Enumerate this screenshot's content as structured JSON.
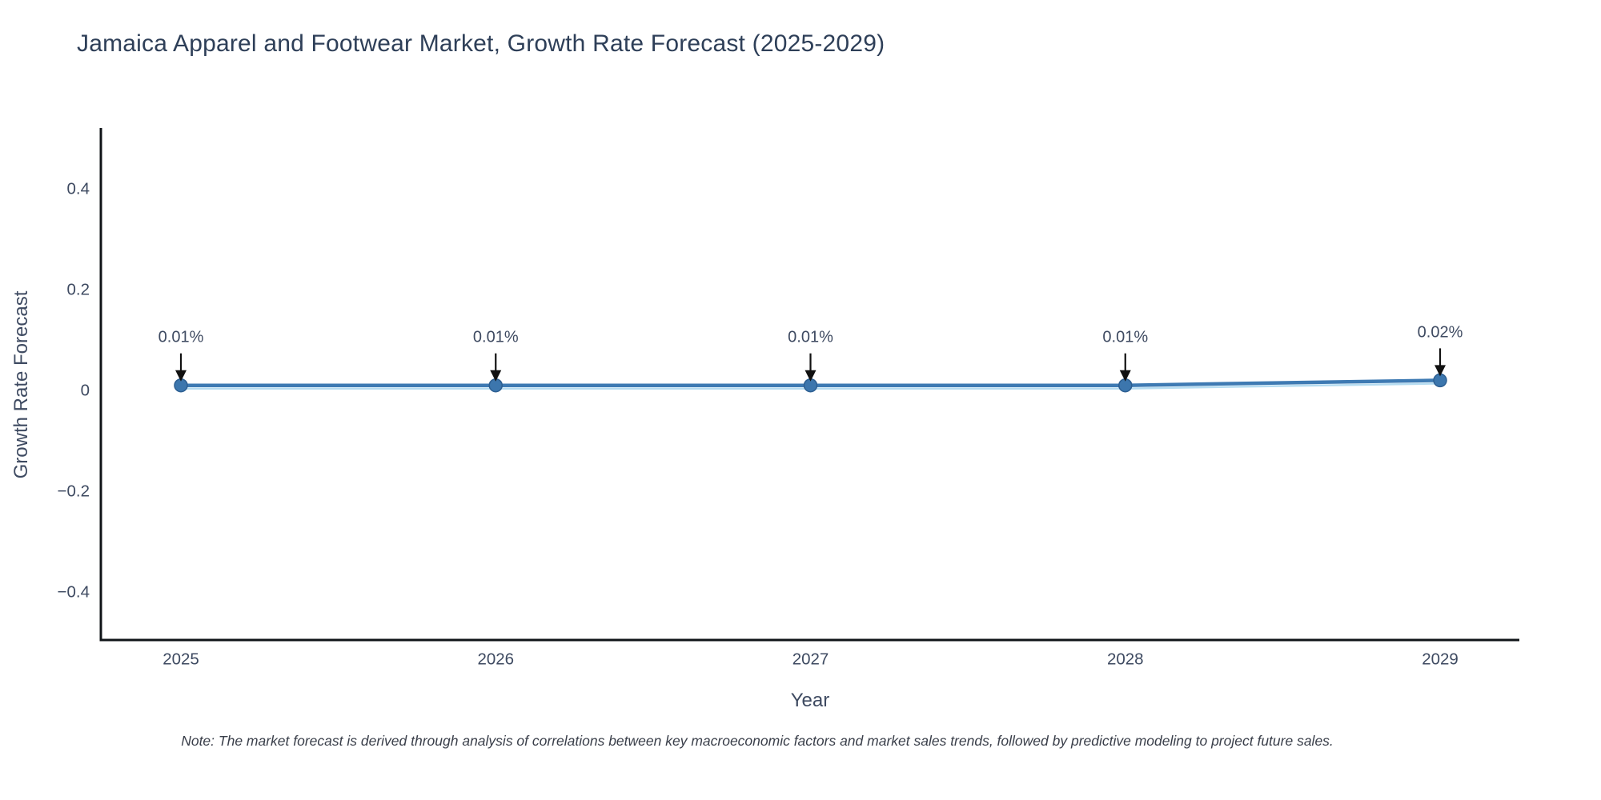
{
  "note": "Note: The market forecast is derived through analysis of correlations between key macroeconomic factors and market sales trends, followed by predictive modeling to project future sales.",
  "colors": {
    "title_text": "#2e3f58",
    "axis_text": "#3e4a61",
    "spine": "#101418",
    "line": "#3e7ab3",
    "line_underlay": "#b5dcf1",
    "marker_fill": "#3c76ad",
    "marker_edge": "#2d5f92",
    "arrow": "#111111"
  },
  "chart_data": {
    "type": "line",
    "title": "Jamaica Apparel and Footwear Market, Growth Rate Forecast (2025-2029)",
    "xlabel": "Year",
    "ylabel": "Growth Rate Forecast",
    "x": [
      2025,
      2026,
      2027,
      2028,
      2029
    ],
    "xtick_labels": [
      "2025",
      "2026",
      "2027",
      "2028",
      "2029"
    ],
    "values": [
      0.01,
      0.01,
      0.01,
      0.01,
      0.02
    ],
    "point_labels": [
      "0.01%",
      "0.01%",
      "0.01%",
      "0.01%",
      "0.02%"
    ],
    "yticks": [
      0.4,
      0.2,
      0,
      -0.2,
      -0.4
    ],
    "ytick_labels": [
      "0.4",
      "0.2",
      "0",
      "−0.2",
      "−0.4"
    ],
    "ylim": [
      -0.52,
      0.52
    ],
    "grid": false,
    "legend": "none",
    "annotation_style": "down-arrow-to-point"
  }
}
